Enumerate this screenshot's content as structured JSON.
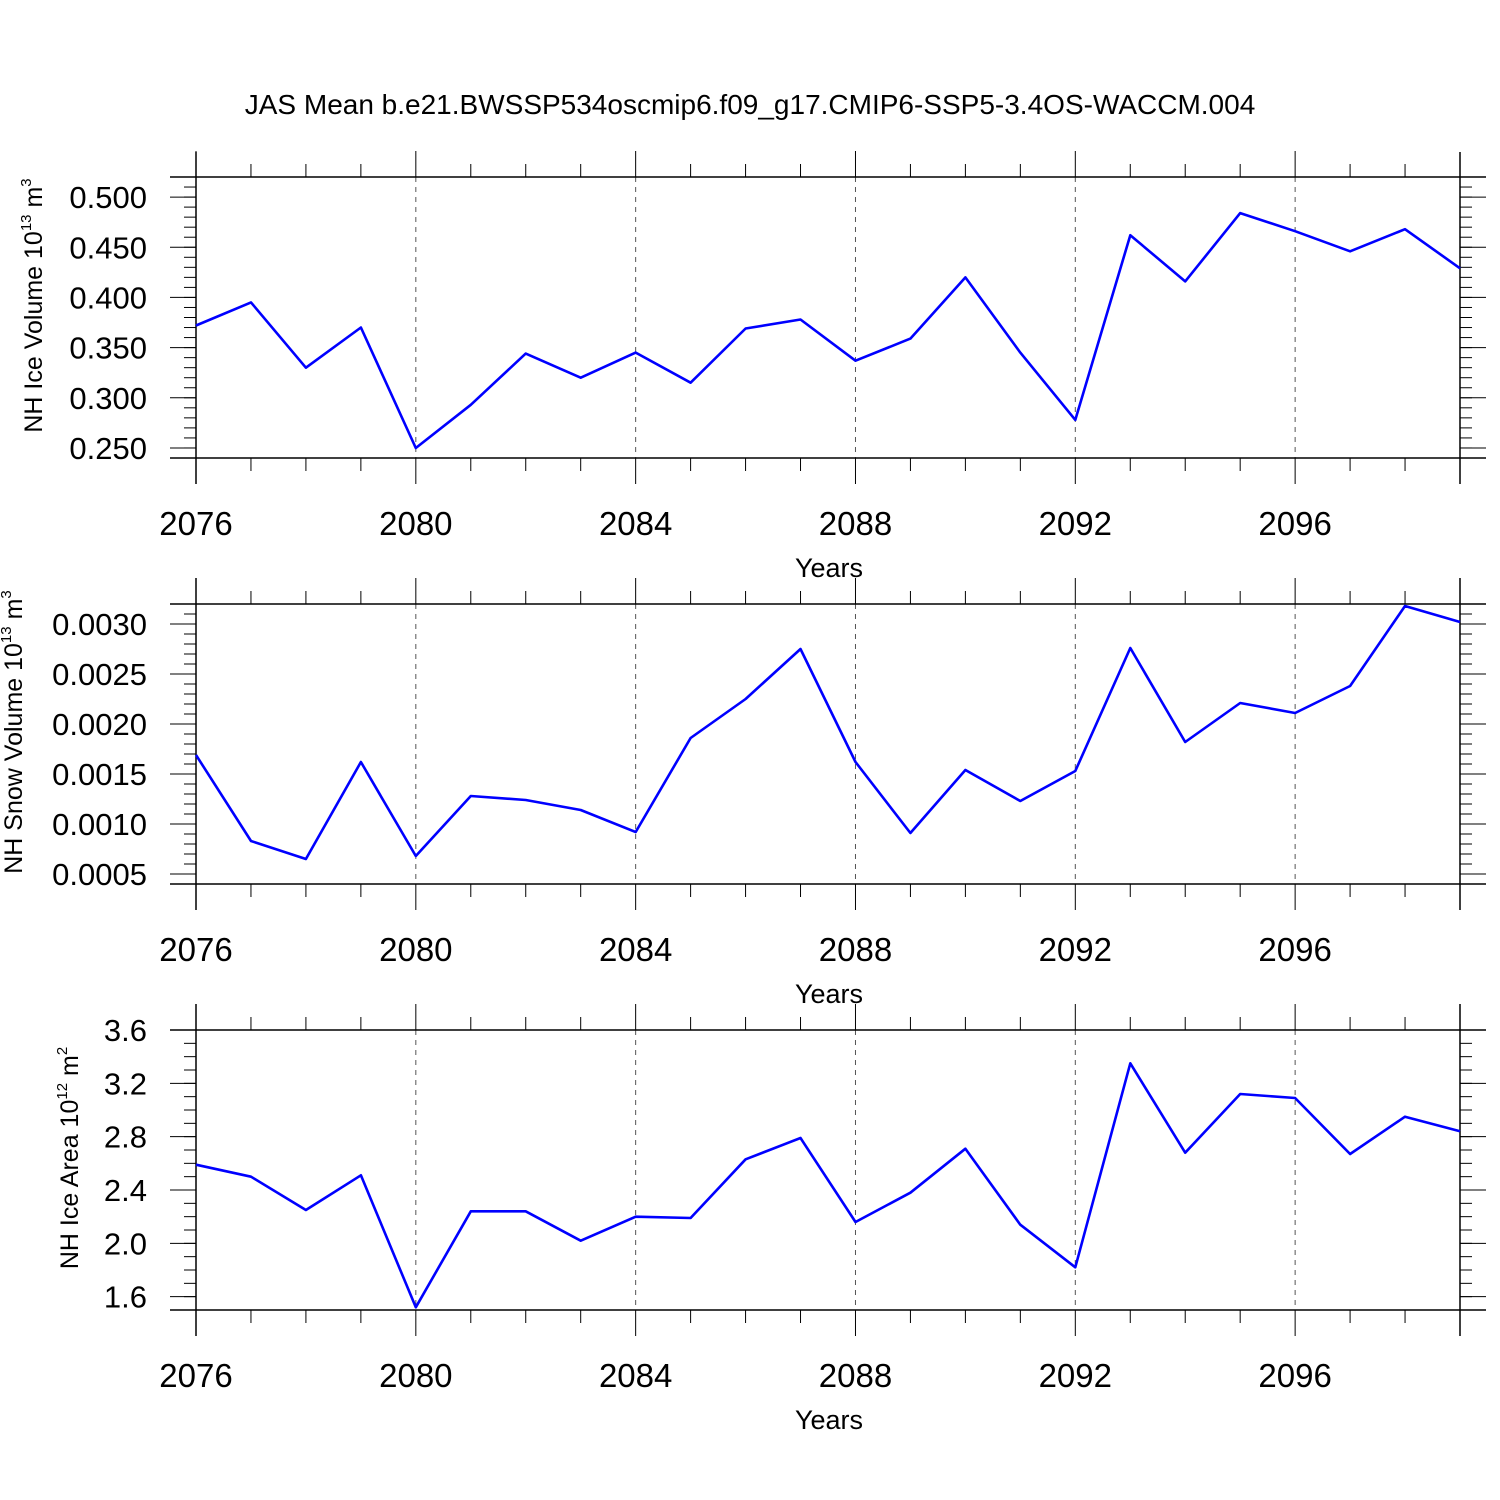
{
  "title": "JAS Mean b.e21.BWSSP534oscmip6.f09_g17.CMIP6-SSP5-3.4OS-WACCM.004",
  "colors": {
    "line": "#0000ff",
    "axis": "#000000",
    "grid": "#555555"
  },
  "chart_data": [
    {
      "type": "line",
      "ylabel_main": "NH Ice Volume 10",
      "ylabel_sup": "13",
      "ylabel_unit": " m",
      "ylabel_unit_sup": "3",
      "xlabel": "Years",
      "xlim": [
        2076,
        2099
      ],
      "ylim": [
        0.24,
        0.52
      ],
      "yticks": [
        0.25,
        0.3,
        0.35,
        0.4,
        0.45,
        0.5
      ],
      "ytick_labels": [
        "0.250",
        "0.300",
        "0.350",
        "0.400",
        "0.450",
        "0.500"
      ],
      "yminor_step": 0.01,
      "xticks": [
        2076,
        2080,
        2084,
        2088,
        2092,
        2096
      ],
      "xtick_labels": [
        "2076",
        "2080",
        "2084",
        "2088",
        "2092",
        "2096"
      ],
      "grid": "vertical dashed at major x ticks",
      "series": [
        {
          "x": [
            2076,
            2077,
            2078,
            2079,
            2080,
            2081,
            2082,
            2083,
            2084,
            2085,
            2086,
            2087,
            2088,
            2089,
            2090,
            2091,
            2092,
            2093,
            2094,
            2095,
            2096,
            2097,
            2098,
            2099
          ],
          "values": [
            0.372,
            0.395,
            0.33,
            0.37,
            0.25,
            0.293,
            0.344,
            0.32,
            0.345,
            0.315,
            0.369,
            0.378,
            0.337,
            0.359,
            0.42,
            0.345,
            0.278,
            0.462,
            0.416,
            0.484,
            0.466,
            0.446,
            0.468,
            0.429
          ]
        }
      ]
    },
    {
      "type": "line",
      "ylabel_main": "NH Snow Volume 10",
      "ylabel_sup": "13",
      "ylabel_unit": " m",
      "ylabel_unit_sup": "3",
      "xlabel": "Years",
      "xlim": [
        2076,
        2099
      ],
      "ylim": [
        0.0004,
        0.0032
      ],
      "yticks": [
        0.0005,
        0.001,
        0.0015,
        0.002,
        0.0025,
        0.003
      ],
      "ytick_labels": [
        "0.0005",
        "0.0010",
        "0.0015",
        "0.0020",
        "0.0025",
        "0.0030"
      ],
      "yminor_step": 0.0001,
      "xticks": [
        2076,
        2080,
        2084,
        2088,
        2092,
        2096
      ],
      "xtick_labels": [
        "2076",
        "2080",
        "2084",
        "2088",
        "2092",
        "2096"
      ],
      "grid": "vertical dashed at major x ticks",
      "series": [
        {
          "x": [
            2076,
            2077,
            2078,
            2079,
            2080,
            2081,
            2082,
            2083,
            2084,
            2085,
            2086,
            2087,
            2088,
            2089,
            2090,
            2091,
            2092,
            2093,
            2094,
            2095,
            2096,
            2097,
            2098,
            2099
          ],
          "values": [
            0.00169,
            0.00083,
            0.00065,
            0.00162,
            0.00068,
            0.00128,
            0.00124,
            0.00114,
            0.00092,
            0.00186,
            0.00225,
            0.00275,
            0.00162,
            0.00091,
            0.00154,
            0.00123,
            0.00153,
            0.00276,
            0.00182,
            0.00221,
            0.00211,
            0.00238,
            0.00318,
            0.00302
          ]
        }
      ]
    },
    {
      "type": "line",
      "ylabel_main": "NH Ice Area 10",
      "ylabel_sup": "12",
      "ylabel_unit": " m",
      "ylabel_unit_sup": "2",
      "xlabel": "Years",
      "xlim": [
        2076,
        2099
      ],
      "ylim": [
        1.5,
        3.6
      ],
      "yticks": [
        1.6,
        2.0,
        2.4,
        2.8,
        3.2,
        3.6
      ],
      "ytick_labels": [
        "1.6",
        "2.0",
        "2.4",
        "2.8",
        "3.2",
        "3.6"
      ],
      "yminor_step": 0.1,
      "xticks": [
        2076,
        2080,
        2084,
        2088,
        2092,
        2096
      ],
      "xtick_labels": [
        "2076",
        "2080",
        "2084",
        "2088",
        "2092",
        "2096"
      ],
      "grid": "vertical dashed at major x ticks",
      "series": [
        {
          "x": [
            2076,
            2077,
            2078,
            2079,
            2080,
            2081,
            2082,
            2083,
            2084,
            2085,
            2086,
            2087,
            2088,
            2089,
            2090,
            2091,
            2092,
            2093,
            2094,
            2095,
            2096,
            2097,
            2098,
            2099
          ],
          "values": [
            2.59,
            2.5,
            2.25,
            2.51,
            1.52,
            2.24,
            2.24,
            2.02,
            2.2,
            2.19,
            2.63,
            2.79,
            2.16,
            2.38,
            2.71,
            2.14,
            1.82,
            3.35,
            2.68,
            3.12,
            3.09,
            2.67,
            2.95,
            2.84
          ]
        }
      ]
    }
  ]
}
